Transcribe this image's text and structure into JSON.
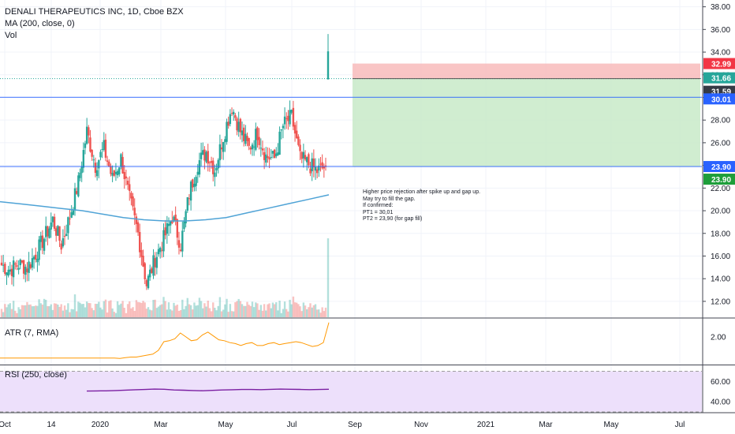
{
  "header": {
    "symbol_line": "DENALI THERAPEUTICS INC, 1D, Cboe BZX",
    "ma_label": "MA (200, close, 0)",
    "vol_label": "Vol"
  },
  "panes": {
    "atr_label": "ATR (7, RMA)",
    "rsi_label": "RSI (250, close)"
  },
  "annotation": {
    "lines": [
      "Higher price rejection after spike up and gap up.",
      "May try to fill the gap.",
      "If confirmed:",
      "PT1 = 30,01",
      "PT2 = 23,90 (for gap fill)"
    ]
  },
  "colors": {
    "up": "#26a69a",
    "down": "#ef5350",
    "ma": "#4fa3d6",
    "hline": "#2962ff",
    "atr": "#ff9800",
    "rsi": "#7b1fa2",
    "stop_zone": "#f8bbbb",
    "target_zone": "#c8eac8",
    "rsi_band": "#ede0fb"
  },
  "chart_data": [
    {
      "type": "candlestick",
      "title": "DENALI THERAPEUTICS INC, 1D, Cboe BZX",
      "x_ticks": [
        "Oct",
        "14",
        "2020",
        "Mar",
        "May",
        "Jul",
        "Sep",
        "Nov",
        "2021",
        "Mar",
        "May",
        "Jul"
      ],
      "y_ticks": [
        "38.00",
        "36.00",
        "34.00",
        "32.00",
        "30.00",
        "28.00",
        "26.00",
        "24.00",
        "22.00",
        "20.00",
        "18.00",
        "16.00",
        "14.00",
        "12.00"
      ],
      "ylim": [
        10.6,
        38.6
      ],
      "price_series": [
        {
          "m": "Oct",
          "c": 15.2
        },
        {
          "m": "Oct",
          "c": 14.8
        },
        {
          "m": "Nov",
          "c": 15.3
        },
        {
          "m": "Nov",
          "c": 15.0
        },
        {
          "m": "Dec",
          "c": 16.2
        },
        {
          "m": "Dec",
          "c": 17.6
        },
        {
          "m": "Dec",
          "c": 19.2
        },
        {
          "m": "Dec",
          "c": 17.0
        },
        {
          "m": "Jan",
          "c": 19.5
        },
        {
          "m": "Jan",
          "c": 22.5
        },
        {
          "m": "Jan",
          "c": 27.0
        },
        {
          "m": "Jan",
          "c": 24.0
        },
        {
          "m": "Feb",
          "c": 25.5
        },
        {
          "m": "Feb",
          "c": 22.8
        },
        {
          "m": "Feb",
          "c": 24.6
        },
        {
          "m": "Feb",
          "c": 21.0
        },
        {
          "m": "Mar",
          "c": 18.0
        },
        {
          "m": "Mar",
          "c": 13.5
        },
        {
          "m": "Mar",
          "c": 15.8
        },
        {
          "m": "Apr",
          "c": 17.5
        },
        {
          "m": "Apr",
          "c": 19.5
        },
        {
          "m": "Apr",
          "c": 17.0
        },
        {
          "m": "Apr",
          "c": 21.5
        },
        {
          "m": "May",
          "c": 24.2
        },
        {
          "m": "May",
          "c": 25.2
        },
        {
          "m": "May",
          "c": 23.6
        },
        {
          "m": "May",
          "c": 26.6
        },
        {
          "m": "Jun",
          "c": 29.2
        },
        {
          "m": "Jun",
          "c": 27.0
        },
        {
          "m": "Jun",
          "c": 25.5
        },
        {
          "m": "Jun",
          "c": 26.9
        },
        {
          "m": "Jun",
          "c": 24.8
        },
        {
          "m": "Jul",
          "c": 24.6
        },
        {
          "m": "Jul",
          "c": 27.5
        },
        {
          "m": "Jul",
          "c": 28.3
        },
        {
          "m": "Jul",
          "c": 24.6
        },
        {
          "m": "Jul",
          "c": 24.1
        },
        {
          "m": "Aug",
          "c": 23.5
        },
        {
          "m": "Aug",
          "c": 23.9
        }
      ],
      "spike": {
        "high": 35.6,
        "close": 31.59
      },
      "ma_200": [
        20.8,
        20.6,
        20.4,
        20.2,
        20.0,
        19.7,
        19.4,
        19.2,
        19.1,
        19.1,
        19.2,
        19.4,
        19.8,
        20.2,
        20.6,
        21.0,
        21.4
      ],
      "price_labels": [
        {
          "value": "32.99",
          "color": "#f23645"
        },
        {
          "value": "31.66",
          "color": "#26a69a"
        },
        {
          "value": "31.59",
          "color": "#363a45"
        },
        {
          "value": "30.01",
          "color": "#2962ff"
        },
        {
          "value": "23.90",
          "color": "#2962ff"
        },
        {
          "value": "23.90",
          "color": "#1e9e3a"
        }
      ],
      "levels": {
        "stop": 32.99,
        "entry": 31.66,
        "pt1": 30.01,
        "pt2": 23.9
      }
    },
    {
      "type": "line",
      "title": "ATR (7, RMA)",
      "y_ticks": [
        "2.00"
      ],
      "ylim": [
        0.6,
        2.9
      ],
      "values": [
        0.9,
        0.88,
        0.92,
        0.95,
        0.95,
        1.0,
        1.05,
        1.1,
        1.3,
        1.75,
        1.8,
        1.9,
        2.2,
        2.0,
        1.8,
        1.85,
        2.1,
        2.25,
        2.05,
        1.85,
        1.8,
        1.7,
        1.65,
        1.55,
        1.65,
        1.7,
        1.55,
        1.55,
        1.65,
        1.7,
        1.6,
        1.65,
        1.7,
        1.75,
        1.7,
        1.6,
        1.5,
        1.55,
        1.7,
        2.75
      ]
    },
    {
      "type": "line",
      "title": "RSI (250, close)",
      "y_ticks": [
        "60.00",
        "40.00"
      ],
      "ylim": [
        30,
        75
      ],
      "band": [
        30,
        70
      ],
      "values": [
        50.5,
        50.6,
        50.7,
        51.0,
        51.4,
        51.8,
        52.0,
        52.4,
        52.3,
        51.6,
        51.3,
        51.0,
        50.8,
        51.2,
        51.6,
        51.8,
        52.0,
        52.0,
        51.9,
        52.2,
        52.4,
        52.3,
        52.1,
        51.9,
        52.0,
        52.3
      ]
    }
  ]
}
